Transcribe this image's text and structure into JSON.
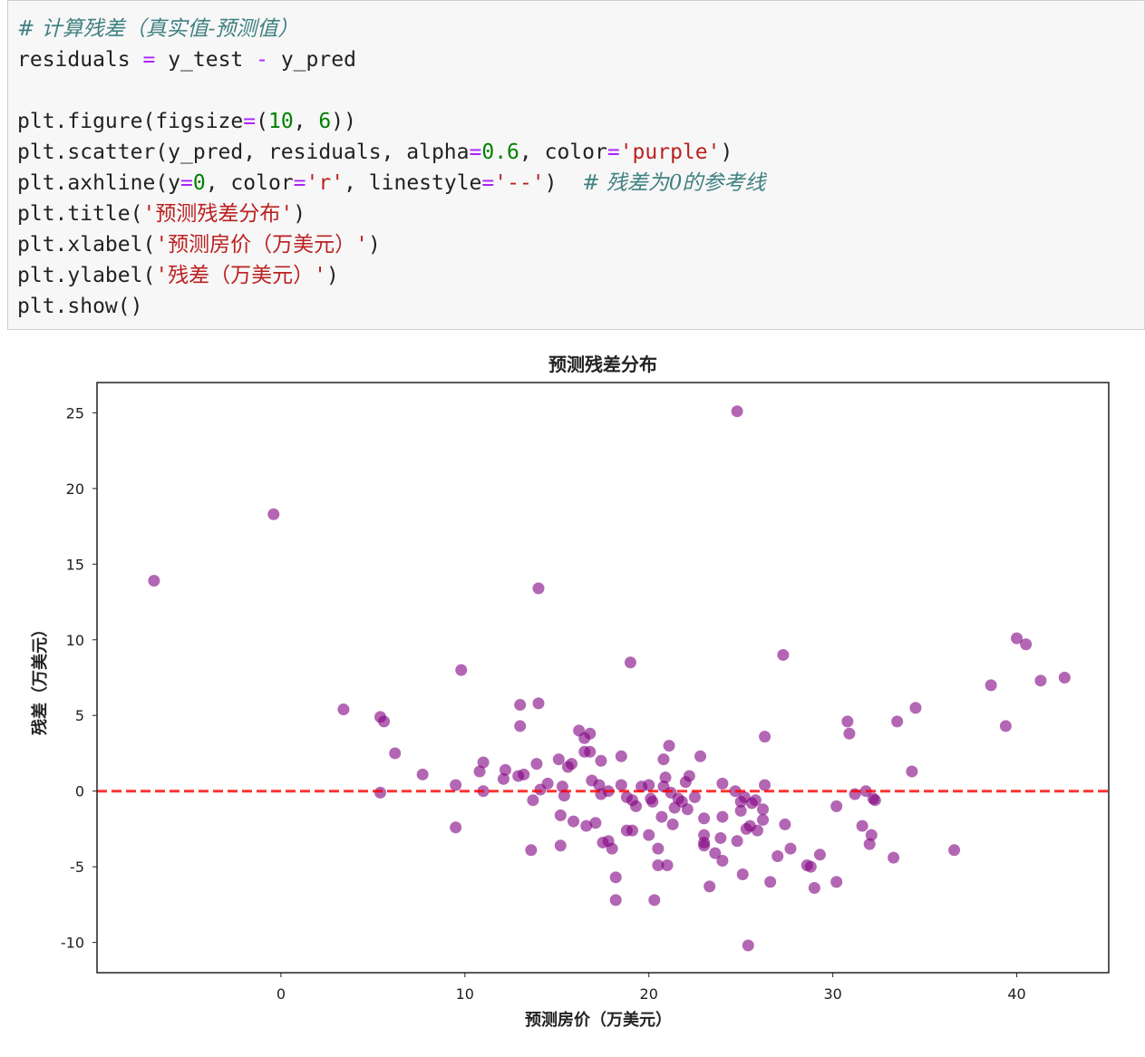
{
  "code": {
    "lines": [
      [
        {
          "t": "# 计算残差（真实值-预测值）",
          "c": "cm"
        }
      ],
      [
        {
          "t": "residuals "
        },
        {
          "t": "=",
          "c": "op"
        },
        {
          "t": " y_test "
        },
        {
          "t": "-",
          "c": "op"
        },
        {
          "t": " y_pred"
        }
      ],
      [
        {
          "t": ""
        }
      ],
      [
        {
          "t": "plt.figure(figsize"
        },
        {
          "t": "=",
          "c": "op"
        },
        {
          "t": "("
        },
        {
          "t": "10",
          "c": "nu"
        },
        {
          "t": ", "
        },
        {
          "t": "6",
          "c": "nu"
        },
        {
          "t": "))"
        }
      ],
      [
        {
          "t": "plt.scatter(y_pred, residuals, alpha"
        },
        {
          "t": "=",
          "c": "op"
        },
        {
          "t": "0.6",
          "c": "nu"
        },
        {
          "t": ", color"
        },
        {
          "t": "=",
          "c": "op"
        },
        {
          "t": "'purple'",
          "c": "st"
        },
        {
          "t": ")"
        }
      ],
      [
        {
          "t": "plt.axhline(y"
        },
        {
          "t": "=",
          "c": "op"
        },
        {
          "t": "0",
          "c": "nu"
        },
        {
          "t": ", color"
        },
        {
          "t": "=",
          "c": "op"
        },
        {
          "t": "'r'",
          "c": "st"
        },
        {
          "t": ", linestyle"
        },
        {
          "t": "=",
          "c": "op"
        },
        {
          "t": "'--'",
          "c": "st"
        },
        {
          "t": ")  "
        },
        {
          "t": "# 残差为0的参考线",
          "c": "cm"
        }
      ],
      [
        {
          "t": "plt.title("
        },
        {
          "t": "'预测残差分布'",
          "c": "st"
        },
        {
          "t": ")"
        }
      ],
      [
        {
          "t": "plt.xlabel("
        },
        {
          "t": "'预测房价（万美元）'",
          "c": "st"
        },
        {
          "t": ")"
        }
      ],
      [
        {
          "t": "plt.ylabel("
        },
        {
          "t": "'残差（万美元）'",
          "c": "st"
        },
        {
          "t": ")"
        }
      ],
      [
        {
          "t": "plt.show()"
        }
      ]
    ]
  },
  "chart_data": {
    "type": "scatter",
    "title": "预测残差分布",
    "xlabel": "预测房价（万美元）",
    "ylabel": "残差（万美元）",
    "xlim": [
      -10,
      45
    ],
    "ylim": [
      -12,
      27
    ],
    "xticks": [
      0,
      10,
      20,
      30,
      40
    ],
    "yticks": [
      -10,
      -5,
      0,
      5,
      10,
      15,
      20,
      25
    ],
    "grid": false,
    "point_color": "#800080",
    "point_alpha": 0.6,
    "reference_line": {
      "y": 0,
      "color": "#ff0000",
      "linestyle": "dashed"
    },
    "points": [
      [
        -6.9,
        13.9
      ],
      [
        -0.4,
        18.3
      ],
      [
        3.4,
        5.4
      ],
      [
        5.4,
        4.9
      ],
      [
        5.6,
        4.6
      ],
      [
        6.2,
        2.5
      ],
      [
        5.4,
        -0.1
      ],
      [
        7.7,
        1.1
      ],
      [
        9.5,
        0.4
      ],
      [
        9.5,
        -2.4
      ],
      [
        9.8,
        8.0
      ],
      [
        10.8,
        1.3
      ],
      [
        11.0,
        1.9
      ],
      [
        11.0,
        0.0
      ],
      [
        12.1,
        0.8
      ],
      [
        12.2,
        1.4
      ],
      [
        12.9,
        1.0
      ],
      [
        13.2,
        1.1
      ],
      [
        13.0,
        5.7
      ],
      [
        13.0,
        4.3
      ],
      [
        13.6,
        -3.9
      ],
      [
        13.7,
        -0.6
      ],
      [
        14.0,
        5.8
      ],
      [
        14.0,
        13.4
      ],
      [
        13.9,
        1.8
      ],
      [
        14.1,
        0.1
      ],
      [
        14.5,
        0.5
      ],
      [
        15.1,
        2.1
      ],
      [
        15.2,
        -1.6
      ],
      [
        15.2,
        -3.6
      ],
      [
        15.3,
        0.3
      ],
      [
        15.4,
        -0.3
      ],
      [
        15.6,
        1.6
      ],
      [
        15.8,
        1.8
      ],
      [
        15.9,
        -2.0
      ],
      [
        16.2,
        4.0
      ],
      [
        16.5,
        3.5
      ],
      [
        16.5,
        2.6
      ],
      [
        16.6,
        -2.3
      ],
      [
        16.8,
        3.8
      ],
      [
        16.8,
        2.6
      ],
      [
        16.9,
        0.7
      ],
      [
        17.1,
        -2.1
      ],
      [
        17.3,
        0.4
      ],
      [
        17.4,
        2.0
      ],
      [
        17.4,
        -0.2
      ],
      [
        17.5,
        -3.4
      ],
      [
        17.8,
        -3.3
      ],
      [
        17.8,
        0.0
      ],
      [
        18.0,
        -3.8
      ],
      [
        18.2,
        -5.7
      ],
      [
        18.2,
        -7.2
      ],
      [
        18.5,
        2.3
      ],
      [
        18.5,
        0.4
      ],
      [
        18.8,
        -0.4
      ],
      [
        18.8,
        -2.6
      ],
      [
        19.0,
        8.5
      ],
      [
        19.1,
        -2.6
      ],
      [
        19.1,
        -0.6
      ],
      [
        19.3,
        -1.0
      ],
      [
        19.6,
        0.3
      ],
      [
        20.0,
        -2.9
      ],
      [
        20.0,
        0.4
      ],
      [
        20.1,
        -0.5
      ],
      [
        20.2,
        -0.7
      ],
      [
        20.3,
        -7.2
      ],
      [
        20.5,
        -3.8
      ],
      [
        20.5,
        -4.9
      ],
      [
        20.7,
        -1.7
      ],
      [
        20.8,
        0.3
      ],
      [
        20.8,
        2.1
      ],
      [
        20.9,
        0.9
      ],
      [
        21.0,
        -4.9
      ],
      [
        21.1,
        3.0
      ],
      [
        21.2,
        -0.1
      ],
      [
        21.3,
        -2.2
      ],
      [
        21.4,
        -1.1
      ],
      [
        21.6,
        -0.5
      ],
      [
        21.8,
        -0.7
      ],
      [
        22.0,
        0.6
      ],
      [
        22.1,
        -1.2
      ],
      [
        22.2,
        1.0
      ],
      [
        22.5,
        -0.4
      ],
      [
        22.8,
        2.3
      ],
      [
        23.0,
        -1.8
      ],
      [
        23.0,
        -2.9
      ],
      [
        23.0,
        -3.4
      ],
      [
        23.0,
        -3.6
      ],
      [
        23.3,
        -6.3
      ],
      [
        23.6,
        -4.1
      ],
      [
        23.9,
        -3.1
      ],
      [
        24.0,
        -4.6
      ],
      [
        24.0,
        -1.7
      ],
      [
        24.0,
        0.5
      ],
      [
        24.7,
        0.0
      ],
      [
        24.8,
        25.1
      ],
      [
        24.8,
        -3.3
      ],
      [
        25.0,
        -0.7
      ],
      [
        25.0,
        -1.3
      ],
      [
        25.1,
        -5.5
      ],
      [
        25.2,
        -0.4
      ],
      [
        25.3,
        -2.5
      ],
      [
        25.4,
        -10.2
      ],
      [
        25.5,
        -2.3
      ],
      [
        25.6,
        -0.8
      ],
      [
        25.8,
        -0.6
      ],
      [
        25.9,
        -2.6
      ],
      [
        26.2,
        -1.2
      ],
      [
        26.2,
        -1.9
      ],
      [
        26.3,
        0.4
      ],
      [
        26.3,
        3.6
      ],
      [
        26.6,
        -6.0
      ],
      [
        27.0,
        -4.3
      ],
      [
        27.3,
        9.0
      ],
      [
        27.4,
        -2.2
      ],
      [
        27.7,
        -3.8
      ],
      [
        28.6,
        -4.9
      ],
      [
        28.8,
        -5.0
      ],
      [
        29.0,
        -6.4
      ],
      [
        29.3,
        -4.2
      ],
      [
        30.2,
        -6.0
      ],
      [
        30.2,
        -1.0
      ],
      [
        30.8,
        4.6
      ],
      [
        30.9,
        3.8
      ],
      [
        31.2,
        -0.2
      ],
      [
        31.6,
        -2.3
      ],
      [
        31.8,
        0.0
      ],
      [
        32.0,
        -3.5
      ],
      [
        32.1,
        -2.9
      ],
      [
        32.2,
        -0.5
      ],
      [
        32.3,
        -0.6
      ],
      [
        33.3,
        -4.4
      ],
      [
        33.5,
        4.6
      ],
      [
        34.3,
        1.3
      ],
      [
        34.5,
        5.5
      ],
      [
        36.6,
        -3.9
      ],
      [
        38.6,
        7.0
      ],
      [
        39.4,
        4.3
      ],
      [
        40.0,
        10.1
      ],
      [
        40.5,
        9.7
      ],
      [
        41.3,
        7.3
      ],
      [
        42.6,
        7.5
      ]
    ]
  }
}
